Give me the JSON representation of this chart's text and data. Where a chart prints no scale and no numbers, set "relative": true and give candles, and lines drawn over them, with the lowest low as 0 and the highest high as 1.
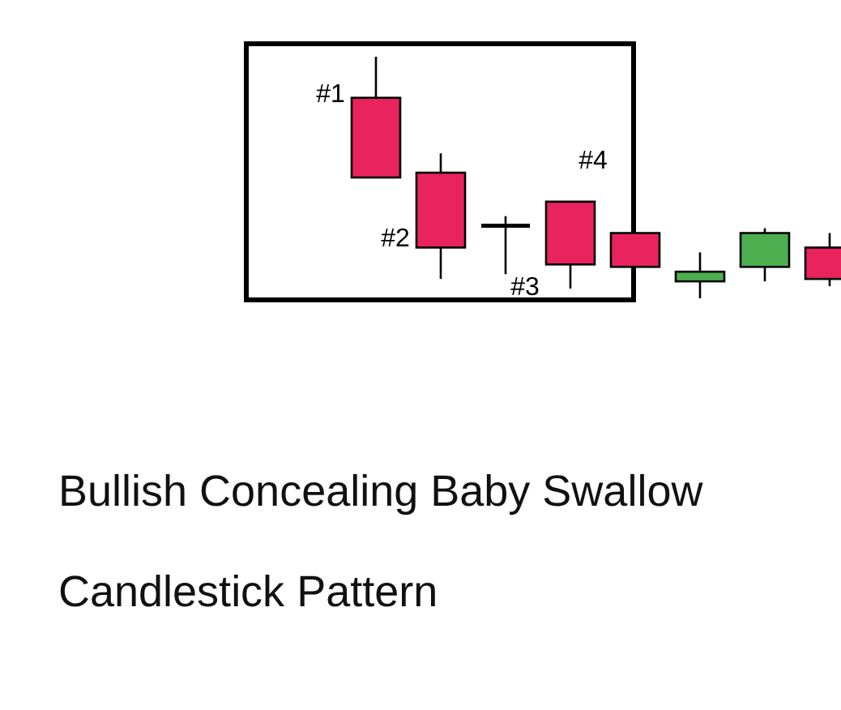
{
  "chart_data": {
    "type": "candlestick",
    "title": "Bullish Concealing Baby Swallow Candlestick Pattern",
    "relative": true,
    "categories": [
      null,
      null,
      null,
      null,
      null,
      null,
      null,
      null
    ],
    "ohlc": [
      [
        0.83,
        1,
        0.5,
        0.5
      ],
      [
        0.52,
        0.6,
        0.08,
        0.21
      ],
      [
        0.3,
        0.34,
        0.1,
        0.3
      ],
      [
        0.4,
        0.4,
        0.04,
        0.14
      ],
      [
        0.27,
        0.27,
        0.13,
        0.13
      ],
      [
        0.07,
        0.19,
        0,
        0.11
      ],
      [
        0.13,
        0.29,
        0.07,
        0.27
      ],
      [
        0.21,
        0.27,
        0.05,
        0.08
      ]
    ],
    "colors": [
      "#e8235e",
      "#e8235e",
      "#000000",
      "#e8235e",
      "#e8235e",
      "#4caf50",
      "#4caf50",
      "#e8235e"
    ],
    "annotations": [
      "#1",
      "#2",
      "#3",
      "#4"
    ]
  }
}
